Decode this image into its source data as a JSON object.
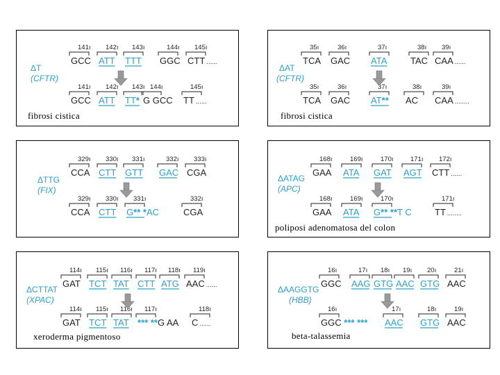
{
  "panels": [
    {
      "caption": "fibrosi cistica",
      "mutation": "ΔT",
      "gene": "(CFTR)",
      "normal": {
        "positions": [
          "141",
          "142",
          "143",
          "144",
          "145"
        ],
        "codons": [
          "GCC",
          "ATT",
          "TTT",
          "GGC",
          "CTT"
        ],
        "highlight": [
          1,
          2
        ],
        "trail": "......"
      },
      "mutant": {
        "positions": [
          "141",
          "142",
          "143",
          "144",
          "145"
        ],
        "codons": [
          "GCC",
          "ATT",
          "TT*",
          "G GCC",
          "TT"
        ],
        "highlight": [
          1,
          2
        ],
        "trail": "......"
      }
    },
    {
      "caption": "fibrosi cistica",
      "mutation": "ΔAT",
      "gene": "(CFTR)",
      "normal": {
        "positions": [
          "35",
          "36",
          "37",
          "38",
          "39"
        ],
        "codons": [
          "TCA",
          "GAC",
          "ATA",
          "TAC",
          "CAA"
        ],
        "highlight": [
          2
        ],
        "trail": "......"
      },
      "mutant": {
        "positions": [
          "35",
          "36",
          "37",
          "38",
          "39"
        ],
        "codons": [
          "TCA",
          "GAC",
          "AT**",
          "AC",
          "CAA"
        ],
        "highlight": [
          2
        ],
        "trail": "........"
      }
    },
    {
      "caption": "",
      "mutation": "ΔTTG",
      "gene": "(FIX)",
      "normal": {
        "positions": [
          "329",
          "330",
          "331",
          "332",
          "333"
        ],
        "codons": [
          "CCA",
          "CTT",
          "GTT",
          "GAC",
          "CGA"
        ],
        "highlight": [
          1,
          2,
          3
        ],
        "trail": ""
      },
      "mutant": {
        "positions": [
          "329",
          "330",
          "331",
          "332"
        ],
        "codons": [
          "CCA",
          "CTT",
          "G** *AC",
          "CGA"
        ],
        "highlight": [
          1,
          2
        ],
        "trail": ""
      }
    },
    {
      "caption": "poliposi adenomatosa del colon",
      "mutation": "ΔATAG",
      "gene": "(APC)",
      "normal": {
        "positions": [
          "168",
          "169",
          "170",
          "171",
          "172"
        ],
        "codons": [
          "GAA",
          "ATA",
          "GAT",
          "AGT",
          "CTT"
        ],
        "highlight": [
          1,
          2,
          3
        ],
        "trail": "......"
      },
      "mutant": {
        "positions": [
          "168",
          "169",
          "170",
          "171"
        ],
        "codons": [
          "GAA",
          "ATA",
          "G** **T C",
          "TT"
        ],
        "highlight": [
          1,
          2
        ],
        "trail": "........"
      }
    },
    {
      "caption": "xeroderma pigmentoso",
      "mutation": "ΔCTTAT",
      "gene": "(XPAC)",
      "normal": {
        "positions": [
          "114",
          "115",
          "116",
          "117",
          "118",
          "119"
        ],
        "codons": [
          "GAT",
          "TCT",
          "TAT",
          "CTT",
          "ATG",
          "AAC"
        ],
        "highlight": [
          1,
          2,
          3,
          4
        ],
        "trail": "......"
      },
      "mutant": {
        "positions": [
          "114",
          "115",
          "116",
          "117",
          "118"
        ],
        "codons": [
          "GAT",
          "TCT",
          "TAT",
          "*** **G AA",
          "C"
        ],
        "highlight": [
          1,
          2
        ],
        "trail": "......"
      }
    },
    {
      "caption": "beta-talassemia",
      "mutation": "ΔAAGGTG",
      "gene": "(HBB)",
      "normal": {
        "positions": [
          "16",
          "17",
          "18",
          "19",
          "20",
          "21"
        ],
        "codons": [
          "GGC",
          "AAG",
          "GTG",
          "AAC",
          "GTG",
          "AAC"
        ],
        "highlight": [
          1,
          2,
          3,
          4
        ],
        "trail": ""
      },
      "mutant": {
        "positions": [
          "16",
          "17",
          "18",
          "19"
        ],
        "codons": [
          "GGC *** ***",
          "AAC",
          "GTG",
          "AAC"
        ],
        "highlight": [
          1,
          2
        ],
        "trail": ""
      }
    }
  ]
}
